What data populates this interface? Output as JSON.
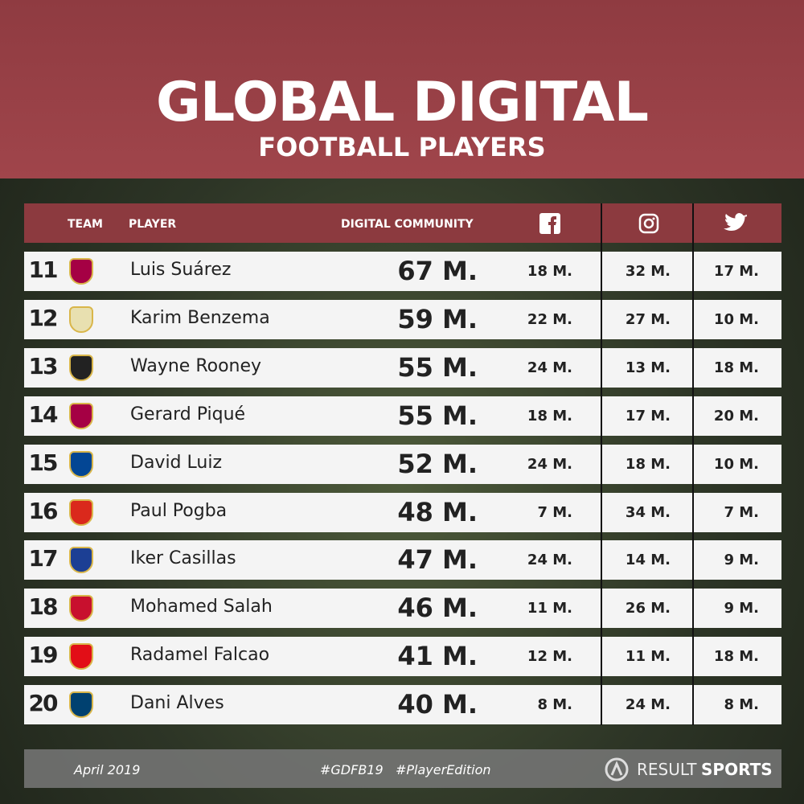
{
  "header": {
    "title": "GLOBAL DIGITAL",
    "subtitle": "FOOTBALL PLAYERS"
  },
  "table": {
    "columns": [
      "TEAM",
      "PLAYER",
      "DIGITAL COMMUNITY"
    ],
    "rows": [
      [
        "11",
        "Luis Suárez",
        "67 M.",
        "18 M.",
        "32 M.",
        "17 M."
      ],
      [
        "12",
        "Karim Benzema",
        "59 M.",
        "22 M.",
        "27 M.",
        "10 M."
      ],
      [
        "13",
        "Wayne Rooney",
        "55 M.",
        "24 M.",
        "13 M.",
        "18 M."
      ],
      [
        "14",
        "Gerard Piqué",
        "55 M.",
        "18 M.",
        "17 M.",
        "20 M."
      ],
      [
        "15",
        "David Luiz",
        "52 M.",
        "24 M.",
        "18 M.",
        "10 M."
      ],
      [
        "16",
        "Paul Pogba",
        "48 M.",
        "7 M.",
        "34 M.",
        "7 M."
      ],
      [
        "17",
        "Iker Casillas",
        "47 M.",
        "24 M.",
        "14 M.",
        "9 M."
      ],
      [
        "18",
        "Mohamed Salah",
        "46 M.",
        "11 M.",
        "26 M.",
        "9 M."
      ],
      [
        "19",
        "Radamel Falcao",
        "41 M.",
        "12 M.",
        "11 M.",
        "18 M."
      ],
      [
        "20",
        "Dani Alves",
        "40 M.",
        "8 M.",
        "24 M.",
        "8 M."
      ]
    ]
  },
  "footer": {
    "date": "April 2019",
    "tags": [
      "#GDFB19",
      "#PlayerEdition"
    ],
    "brand": [
      "RESULT",
      "SPORTS"
    ]
  }
}
